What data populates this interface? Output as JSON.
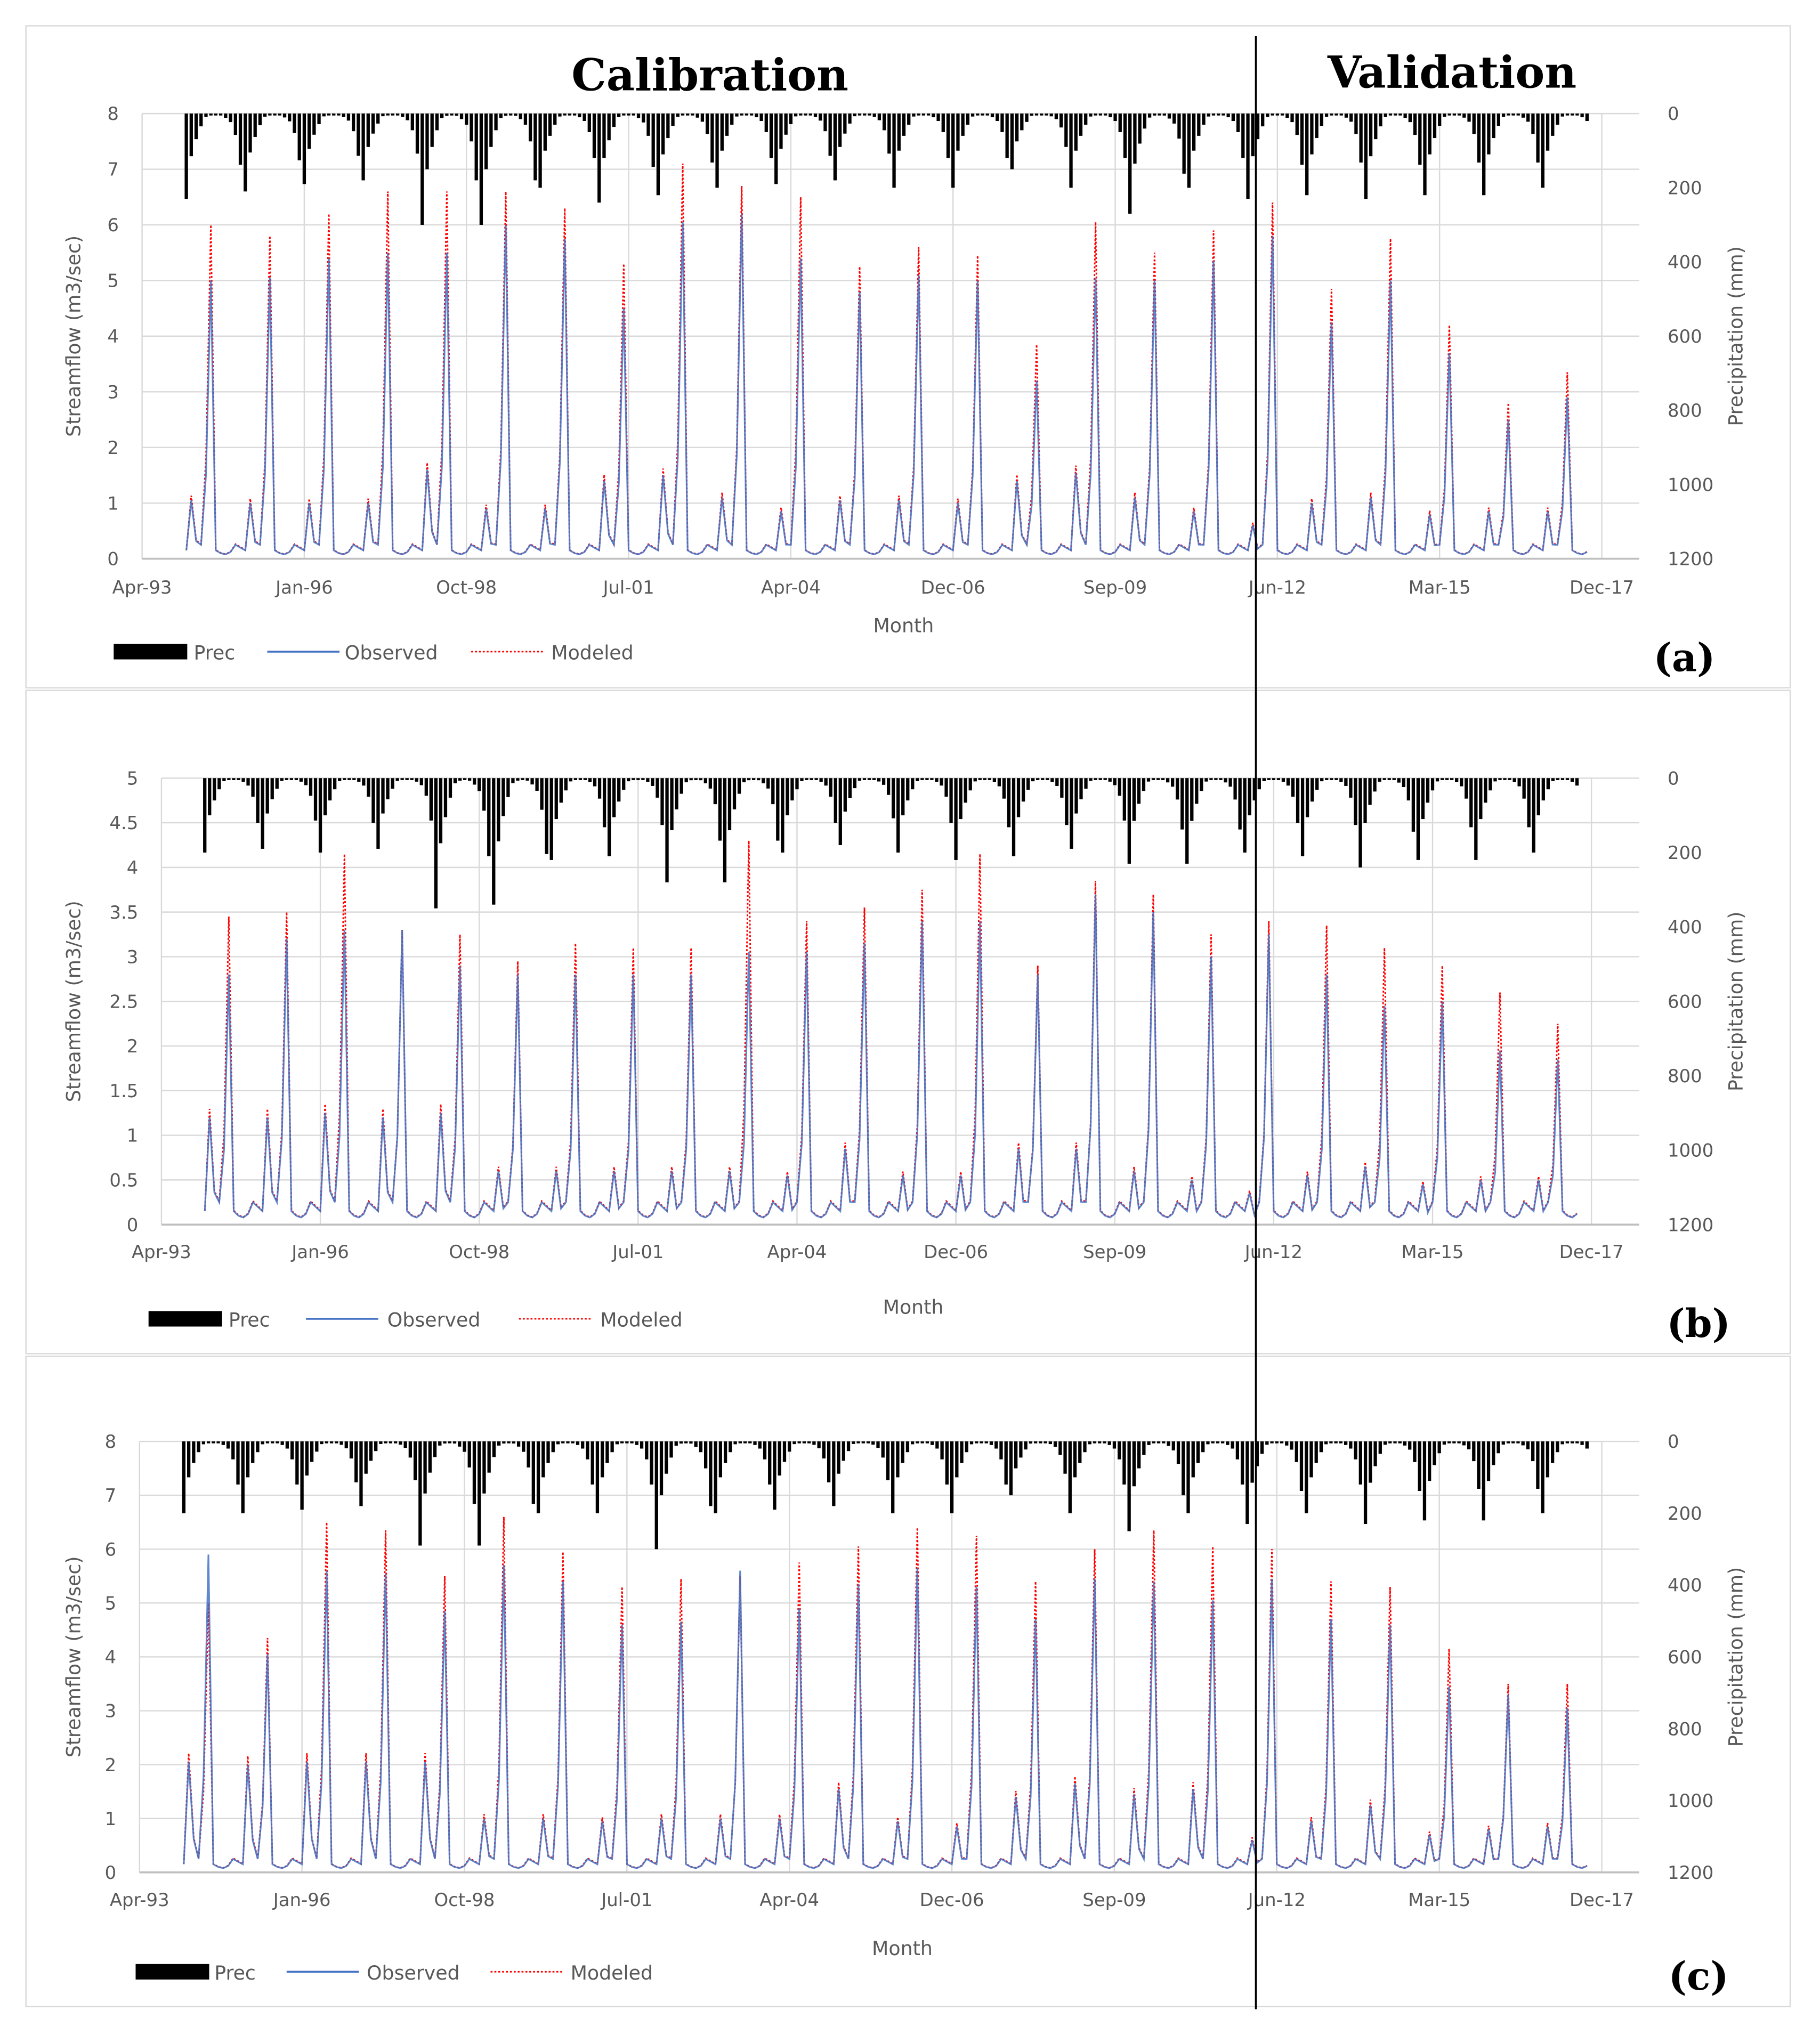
{
  "titles": {
    "calibration": "Calibration",
    "validation": "Validation"
  },
  "colors": {
    "observed": "#4472c4",
    "modeled": "#ff0000",
    "prec": "#000000",
    "grid": "#d9d9d9",
    "text": "#595959"
  },
  "chart_data": [
    {
      "id": "a",
      "panel_label": "(a)",
      "type": "line+bar",
      "xlabel": "Month",
      "ylabel": "Streamflow (m3/sec)",
      "y2label": "Precipitation (mm)",
      "ylim": [
        0,
        8
      ],
      "yticks": [
        0,
        1,
        2,
        3,
        4,
        5,
        6,
        7,
        8
      ],
      "y2lim": [
        1200,
        0
      ],
      "y2ticks": [
        0,
        200,
        400,
        600,
        800,
        1000,
        1200
      ],
      "xlim": [
        "Apr-93",
        "Aug-18"
      ],
      "xticks": [
        "Apr-93",
        "Jan-96",
        "Oct-98",
        "Jul-01",
        "Apr-04",
        "Dec-06",
        "Sep-09",
        "Jun-12",
        "Mar-15",
        "Dec-17"
      ],
      "legend": [
        "Prec",
        "Observed",
        "Modeled"
      ],
      "legend_position": "bottom-left",
      "grid": true,
      "years": [
        1994,
        1995,
        1996,
        1997,
        1998,
        1999,
        2000,
        2001,
        2002,
        2003,
        2004,
        2005,
        2006,
        2007,
        2008,
        2009,
        2010,
        2011,
        2012,
        2013,
        2014,
        2015,
        2016,
        2017
      ],
      "observed_annual_peak": [
        5.0,
        5.05,
        5.4,
        5.5,
        5.5,
        6.0,
        5.75,
        4.5,
        6.05,
        6.2,
        5.4,
        4.8,
        5.1,
        5.0,
        3.2,
        5.05,
        5.0,
        5.35,
        5.8,
        4.25,
        5.0,
        3.7,
        2.5,
        2.9
      ],
      "modeled_annual_peak": [
        6.0,
        5.8,
        6.2,
        6.6,
        6.6,
        6.6,
        6.3,
        5.3,
        7.1,
        6.7,
        6.5,
        5.25,
        5.6,
        5.45,
        3.85,
        6.05,
        5.5,
        5.9,
        6.4,
        4.85,
        5.75,
        4.2,
        2.8,
        3.35
      ],
      "secondary_peak": [
        1.05,
        1.0,
        1.0,
        1.0,
        1.6,
        0.9,
        0.9,
        1.4,
        1.5,
        1.1,
        0.85,
        1.05,
        1.05,
        1.0,
        1.4,
        1.55,
        1.1,
        0.85,
        0.6,
        1.0,
        1.1,
        0.8,
        0.85,
        0.85
      ],
      "prec_annual_max_mm": [
        230,
        210,
        190,
        180,
        300,
        300,
        200,
        240,
        220,
        200,
        190,
        180,
        200,
        200,
        150,
        200,
        270,
        200,
        230,
        220,
        230,
        220,
        220,
        200
      ]
    },
    {
      "id": "b",
      "panel_label": "(b)",
      "type": "line+bar",
      "xlabel": "Month",
      "ylabel": "Streamflow (m3/sec)",
      "y2label": "Precipitation (mm)",
      "ylim": [
        0,
        5
      ],
      "yticks": [
        0,
        0.5,
        1,
        1.5,
        2,
        2.5,
        3,
        3.5,
        4,
        4.5,
        5
      ],
      "y2lim": [
        1200,
        0
      ],
      "y2ticks": [
        0,
        200,
        400,
        600,
        800,
        1000,
        1200
      ],
      "xlim": [
        "Apr-93",
        "Aug-18"
      ],
      "xticks": [
        "Apr-93",
        "Jan-96",
        "Oct-98",
        "Jul-01",
        "Apr-04",
        "Dec-06",
        "Sep-09",
        "Jun-12",
        "Mar-15",
        "Dec-17"
      ],
      "legend": [
        "Prec",
        "Observed",
        "Modeled"
      ],
      "legend_position": "bottom-left",
      "grid": true,
      "years": [
        1994,
        1995,
        1996,
        1997,
        1998,
        1999,
        2000,
        2001,
        2002,
        2003,
        2004,
        2005,
        2006,
        2007,
        2008,
        2009,
        2010,
        2011,
        2012,
        2013,
        2014,
        2015,
        2016,
        2017
      ],
      "observed_annual_peak": [
        2.8,
        3.2,
        3.3,
        3.3,
        2.9,
        2.8,
        2.8,
        2.8,
        2.8,
        3.05,
        3.05,
        3.15,
        3.4,
        3.4,
        2.8,
        3.7,
        3.5,
        3.0,
        3.25,
        2.8,
        2.45,
        2.5,
        1.95,
        1.85
      ],
      "modeled_annual_peak": [
        3.45,
        3.5,
        4.15,
        3.3,
        3.25,
        2.95,
        3.15,
        3.1,
        3.1,
        4.3,
        3.4,
        3.55,
        3.75,
        4.15,
        2.9,
        3.85,
        3.7,
        3.25,
        3.4,
        3.35,
        3.1,
        2.9,
        2.6,
        2.25
      ],
      "secondary_peak": [
        1.2,
        1.2,
        1.25,
        1.2,
        1.25,
        0.6,
        0.6,
        0.6,
        0.6,
        0.6,
        0.55,
        0.85,
        0.55,
        0.55,
        0.85,
        0.85,
        0.6,
        0.5,
        0.35,
        0.55,
        0.65,
        0.45,
        0.5,
        0.5
      ],
      "prec_annual_max_mm": [
        200,
        190,
        200,
        190,
        350,
        340,
        220,
        210,
        280,
        280,
        200,
        180,
        200,
        220,
        210,
        190,
        230,
        230,
        200,
        210,
        240,
        220,
        220,
        200
      ]
    },
    {
      "id": "c",
      "panel_label": "(c)",
      "type": "line+bar",
      "xlabel": "Month",
      "ylabel": "Streamflow (m3/sec)",
      "y2label": "Precipitation (mm)",
      "ylim": [
        0,
        8
      ],
      "yticks": [
        0,
        1,
        2,
        3,
        4,
        5,
        6,
        7,
        8
      ],
      "y2lim": [
        1200,
        0
      ],
      "y2ticks": [
        0,
        200,
        400,
        600,
        800,
        1000,
        1200
      ],
      "xlim": [
        "Apr-93",
        "Aug-18"
      ],
      "xticks": [
        "Apr-93",
        "Jan-96",
        "Oct-98",
        "Jul-01",
        "Apr-04",
        "Dec-06",
        "Sep-09",
        "Jun-12",
        "Mar-15",
        "Dec-17"
      ],
      "legend": [
        "Prec",
        "Observed",
        "Modeled"
      ],
      "legend_position": "bottom-left",
      "grid": true,
      "years": [
        1994,
        1995,
        1996,
        1997,
        1998,
        1999,
        2000,
        2001,
        2002,
        2003,
        2004,
        2005,
        2006,
        2007,
        2008,
        2009,
        2010,
        2011,
        2012,
        2013,
        2014,
        2015,
        2016,
        2017
      ],
      "observed_annual_peak": [
        5.9,
        4.05,
        5.6,
        5.55,
        4.85,
        5.7,
        5.4,
        4.6,
        4.65,
        5.6,
        4.9,
        5.35,
        5.65,
        5.3,
        4.7,
        5.45,
        5.4,
        5.05,
        5.45,
        4.7,
        4.6,
        3.45,
        3.3,
        3.05
      ],
      "modeled_annual_peak": [
        5.0,
        4.35,
        6.5,
        6.35,
        5.5,
        6.6,
        5.95,
        5.3,
        5.45,
        5.5,
        5.75,
        6.05,
        6.4,
        6.25,
        5.4,
        6.0,
        6.35,
        6.05,
        6.0,
        5.4,
        5.3,
        4.15,
        3.5,
        3.5
      ],
      "secondary_peak": [
        2.05,
        2.0,
        2.05,
        2.05,
        2.05,
        1.0,
        1.0,
        0.95,
        1.0,
        1.0,
        1.0,
        1.55,
        0.95,
        0.85,
        1.4,
        1.65,
        1.45,
        1.55,
        0.6,
        0.95,
        1.25,
        0.7,
        0.8,
        0.85
      ],
      "prec_annual_max_mm": [
        200,
        200,
        190,
        180,
        290,
        290,
        200,
        200,
        300,
        200,
        190,
        180,
        200,
        200,
        150,
        200,
        250,
        200,
        230,
        200,
        230,
        220,
        220,
        200
      ]
    }
  ]
}
